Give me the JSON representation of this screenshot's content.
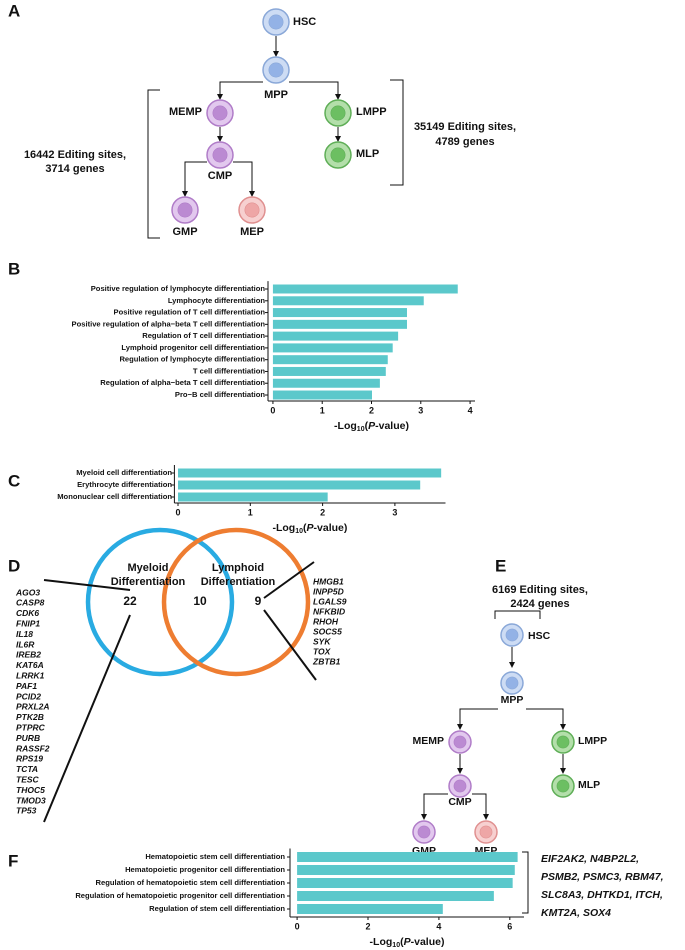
{
  "panel_labels": [
    "A",
    "B",
    "C",
    "D",
    "E",
    "F"
  ],
  "panel_a": {
    "nodes": [
      "HSC",
      "MPP",
      "MEMP",
      "LMPP",
      "CMP",
      "MLP",
      "GMP",
      "MEP"
    ],
    "left_annotation": [
      "16442 Editing sites,",
      "3714 genes"
    ],
    "right_annotation": [
      "35149 Editing sites,",
      "4789 genes"
    ]
  },
  "chart_data": [
    {
      "type": "bar",
      "orientation": "horizontal",
      "color": "#5bc8cb",
      "categories": [
        "Positive regulation of lymphocyte differentiation",
        "Lymphocyte differentiation",
        "Positive regulation of T cell differentiation",
        "Positive regulation of alpha−beta T cell differentiation",
        "Regulation of T cell differentiation",
        "Lymphoid progenitor cell differentiation",
        "Regulation of lymphocyte differentiation",
        "T cell differentiation",
        "Regulation of alpha−beta T cell differentiation",
        "Pro−B cell differentiation"
      ],
      "values": [
        3.75,
        3.06,
        2.72,
        2.72,
        2.54,
        2.43,
        2.33,
        2.29,
        2.17,
        2.01
      ],
      "xlim": [
        -0.1,
        4.1
      ],
      "xticks": [
        0,
        1,
        2,
        3,
        4
      ],
      "xlabel": [
        "-Log",
        "10",
        "(",
        "P",
        "-value)"
      ]
    },
    {
      "type": "bar",
      "orientation": "horizontal",
      "color": "#5bc8cb",
      "categories": [
        "Myeloid cell differentiation",
        "Erythrocyte differentiation",
        "Mononuclear cell differentiation"
      ],
      "values": [
        3.64,
        3.35,
        2.07
      ],
      "xlim": [
        -0.05,
        3.7
      ],
      "xticks": [
        0,
        1,
        2,
        3
      ],
      "xlabel": [
        "-Log",
        "10",
        "(",
        "P",
        "-value)"
      ]
    },
    {
      "type": "bar",
      "orientation": "horizontal",
      "color": "#5bc8cb",
      "categories": [
        "Hematopoietic stem cell differentiation",
        "Hematopoietic progenitor cell differentiation",
        "Regulation of hematopoietic stem cell differentiation",
        "Regulation of hematopoietic progenitor cell differentiation",
        "Regulation of stem cell differentiation"
      ],
      "values": [
        6.22,
        6.14,
        6.08,
        5.55,
        4.11
      ],
      "xlim": [
        -0.2,
        6.4
      ],
      "xticks": [
        0,
        2,
        4,
        6
      ],
      "xlabel": [
        "-Log",
        "10",
        "(",
        "P",
        "-value)"
      ]
    }
  ],
  "panel_d": {
    "myeloid_title": [
      "Myeloid",
      "Differentiation"
    ],
    "lymphoid_title": [
      "Lymphoid",
      "Differentiation"
    ],
    "counts": [
      22,
      10,
      9
    ],
    "myeloid_genes": [
      "AGO3",
      "CASP8",
      "CDK6",
      "FNIP1",
      "IL18",
      "IL6R",
      "IREB2",
      "KAT6A",
      "LRRK1",
      "PAF1",
      "PCID2",
      "PRXL2A",
      "PTK2B",
      "PTPRC",
      "PURB",
      "RASSF2",
      "RPS19",
      "TCTA",
      "TESC",
      "THOC5",
      "TMOD3",
      "TP53"
    ],
    "lymphoid_genes": [
      "HMGB1",
      "INPP5D",
      "LGALS9",
      "NFKBID",
      "RHOH",
      "SOCS5",
      "SYK",
      "TOX",
      "ZBTB1"
    ]
  },
  "panel_e": {
    "annotation": [
      "6169 Editing sites,",
      "2424 genes"
    ],
    "nodes": [
      "HSC",
      "MPP",
      "MEMP",
      "LMPP",
      "CMP",
      "MLP",
      "GMP",
      "MEP"
    ]
  },
  "panel_f": {
    "genes": [
      "EIF2AK2, N4BP2L2,",
      "PSMB2, PSMC3, RBM47,",
      "SLC8A3, DHTKD1, ITCH,",
      "KMT2A, SOX4"
    ]
  }
}
